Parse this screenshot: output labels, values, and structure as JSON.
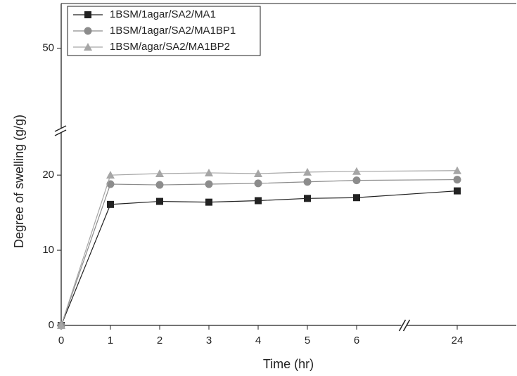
{
  "chart_data": {
    "type": "line",
    "x_label": "Time (hr)",
    "y_label": "Degree of swelling (g/g)",
    "categories": [
      "0",
      "1",
      "2",
      "3",
      "4",
      "5",
      "6",
      "24"
    ],
    "series": [
      {
        "name": "1BSM/1agar/SA2/MA1",
        "color": "#222222",
        "marker": "square",
        "values": [
          0,
          16.1,
          16.5,
          16.4,
          16.6,
          16.9,
          17.0,
          17.9
        ]
      },
      {
        "name": "1BSM/1agar/SA2/MA1BP1",
        "color": "#8c8c8c",
        "marker": "circle",
        "values": [
          0,
          18.8,
          18.7,
          18.8,
          18.9,
          19.1,
          19.3,
          19.4
        ]
      },
      {
        "name": "1BSM/agar/SA2/MA1BP2",
        "color": "#a6a6a6",
        "marker": "triangle",
        "values": [
          0,
          20.0,
          20.2,
          20.3,
          20.2,
          20.4,
          20.5,
          20.6
        ]
      }
    ],
    "ylim": [
      0,
      56
    ],
    "y_break": [
      26,
      39
    ],
    "yticks": [
      0,
      10,
      20,
      50
    ]
  }
}
